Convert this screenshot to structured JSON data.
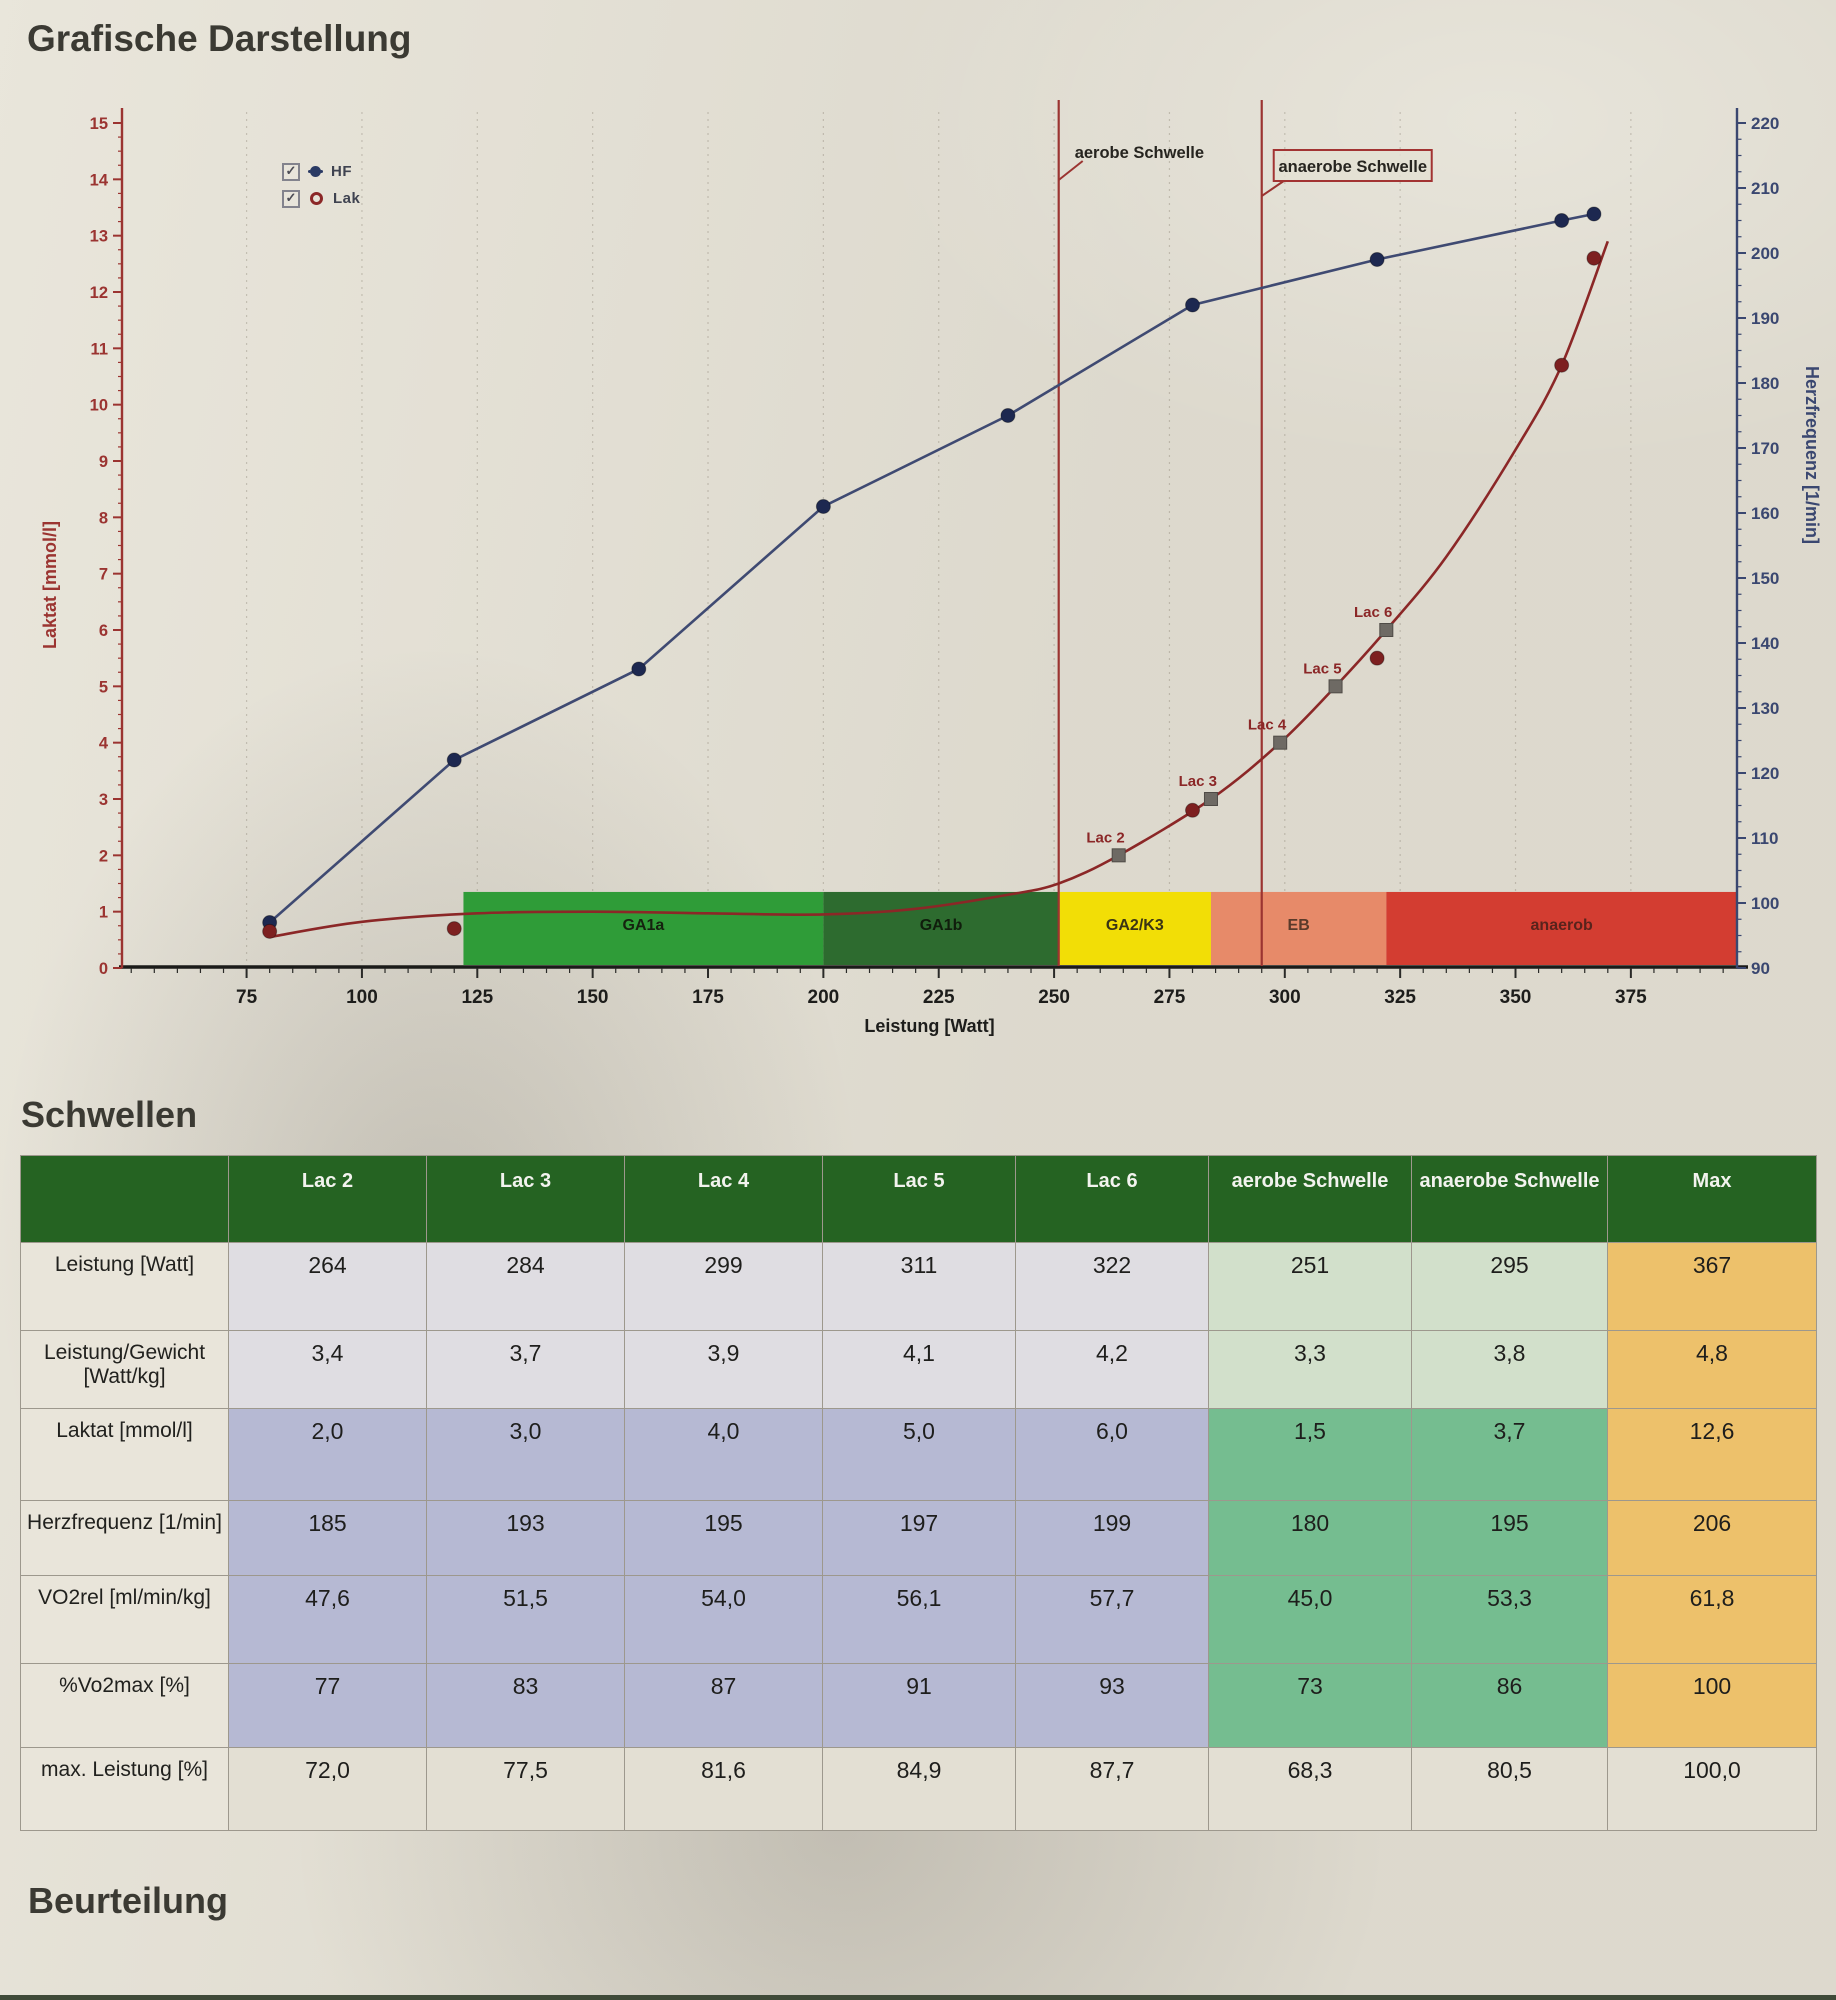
{
  "page": {
    "title": "Grafische Darstellung",
    "section_schwellen": "Schwellen",
    "section_beurteilung": "Beurteilung"
  },
  "chart_data": {
    "type": "line",
    "xlabel": "Leistung [Watt]",
    "x_domain": [
      48,
      398
    ],
    "x_ticks": [
      75,
      100,
      125,
      150,
      175,
      200,
      225,
      250,
      275,
      300,
      325,
      350,
      375
    ],
    "x_minor_step": 5,
    "left_axis": {
      "label": "Laktat [mmol/l]",
      "domain": [
        0,
        15
      ],
      "tick_step": 1,
      "minor_step": 0.25,
      "color": "#9b3431"
    },
    "right_axis": {
      "label": "Herzfrequenz [1/min]",
      "domain": [
        90,
        220
      ],
      "tick_step": 10,
      "minor_step": 2.5,
      "color": "#3a4770"
    },
    "legend": [
      {
        "label": "HF",
        "checked": true,
        "marker": "dot",
        "color": "#2a3a64"
      },
      {
        "label": "Lak",
        "checked": true,
        "marker": "ring",
        "color": "#8b2727"
      }
    ],
    "series": [
      {
        "name": "HF",
        "axis": "right",
        "color": "#3f4a72",
        "marker_color": "#1d2850",
        "draw": "both",
        "smooth": false,
        "x": [
          80,
          120,
          160,
          200,
          240,
          280,
          320,
          360,
          367
        ],
        "y": [
          97,
          122,
          136,
          161,
          175,
          192,
          199,
          205,
          206
        ]
      },
      {
        "name": "Laktatkurve",
        "axis": "left",
        "color": "#8b2727",
        "draw": "line",
        "smooth": true,
        "x": [
          80,
          100,
          125,
          150,
          175,
          200,
          220,
          240,
          251,
          264,
          284,
          299,
          311,
          322,
          335,
          350,
          360,
          370
        ],
        "y": [
          0.55,
          0.82,
          0.97,
          1.0,
          0.97,
          0.95,
          1.05,
          1.3,
          1.5,
          2.0,
          3.0,
          4.0,
          5.0,
          6.0,
          7.3,
          9.2,
          10.7,
          12.9
        ]
      },
      {
        "name": "Lak Messwerte",
        "axis": "left",
        "color": "#7d2020",
        "marker_color": "#7d2020",
        "draw": "points",
        "smooth": false,
        "x": [
          80,
          120,
          280,
          320,
          360,
          367
        ],
        "y": [
          0.65,
          0.7,
          2.8,
          5.5,
          10.7,
          12.6
        ]
      }
    ],
    "lac_markers": [
      {
        "label": "Lac 2",
        "x": 264,
        "y": 2.0
      },
      {
        "label": "Lac 3",
        "x": 284,
        "y": 3.0
      },
      {
        "label": "Lac 4",
        "x": 299,
        "y": 4.0
      },
      {
        "label": "Lac 5",
        "x": 311,
        "y": 5.0
      },
      {
        "label": "Lac 6",
        "x": 322,
        "y": 6.0
      }
    ],
    "vlines": [
      {
        "label": "aerobe Schwelle",
        "x": 251,
        "boxed": false
      },
      {
        "label": "anaerobe Schwelle",
        "x": 295,
        "boxed": true
      }
    ],
    "zones": [
      {
        "label": "GA1a",
        "from": 122,
        "to": 200,
        "color": "#2f9c38",
        "label_color": "#15230f"
      },
      {
        "label": "GA1b",
        "from": 200,
        "to": 251,
        "color": "#2d6b2f",
        "label_color": "#101d0c"
      },
      {
        "label": "GA2/K3",
        "from": 251,
        "to": 284,
        "color": "#f2de06",
        "label_color": "#3a3414"
      },
      {
        "label": "EB",
        "from": 284,
        "to": 322,
        "color": "#e78a69",
        "label_color": "#5a3a2a"
      },
      {
        "label": "anaerob",
        "from": 322,
        "to": 398,
        "color": "#d33d31",
        "label_color": "#58231c"
      }
    ],
    "zone_top": 1.35
  },
  "table": {
    "columns": [
      "",
      "Lac 2",
      "Lac 3",
      "Lac 4",
      "Lac 5",
      "Lac 6",
      "aerobe Schwelle",
      "anaerobe Schwelle",
      "Max"
    ],
    "rows": [
      {
        "label": "Leistung [Watt]",
        "values": [
          "264",
          "284",
          "299",
          "311",
          "322",
          "251",
          "295",
          "367"
        ]
      },
      {
        "label": "Leistung/Gewicht [Watt/kg]",
        "values": [
          "3,4",
          "3,7",
          "3,9",
          "4,1",
          "4,2",
          "3,3",
          "3,8",
          "4,8"
        ]
      },
      {
        "label": "Laktat [mmol/l]",
        "values": [
          "2,0",
          "3,0",
          "4,0",
          "5,0",
          "6,0",
          "1,5",
          "3,7",
          "12,6"
        ]
      },
      {
        "label": "Herzfrequenz [1/min]",
        "values": [
          "185",
          "193",
          "195",
          "197",
          "199",
          "180",
          "195",
          "206"
        ]
      },
      {
        "label": "VO2rel [ml/min/kg]",
        "values": [
          "47,6",
          "51,5",
          "54,0",
          "56,1",
          "57,7",
          "45,0",
          "53,3",
          "61,8"
        ]
      },
      {
        "label": "%Vo2max [%]",
        "values": [
          "77",
          "83",
          "87",
          "91",
          "93",
          "73",
          "86",
          "100"
        ]
      },
      {
        "label": "max. Leistung [%]",
        "values": [
          "72,0",
          "77,5",
          "81,6",
          "84,9",
          "87,7",
          "68,3",
          "80,5",
          "100,0"
        ]
      }
    ]
  },
  "colors": {
    "header_green": "#256322",
    "lavender": "#b6b9d3",
    "light_cell": "#dfdde2",
    "pale_green": "#d2e0cb",
    "mid_green": "#75bd90",
    "orange": "#edc16b",
    "paper": "#e4e0d4",
    "lactate_red": "#8b2727",
    "hf_blue": "#3f4a72"
  }
}
